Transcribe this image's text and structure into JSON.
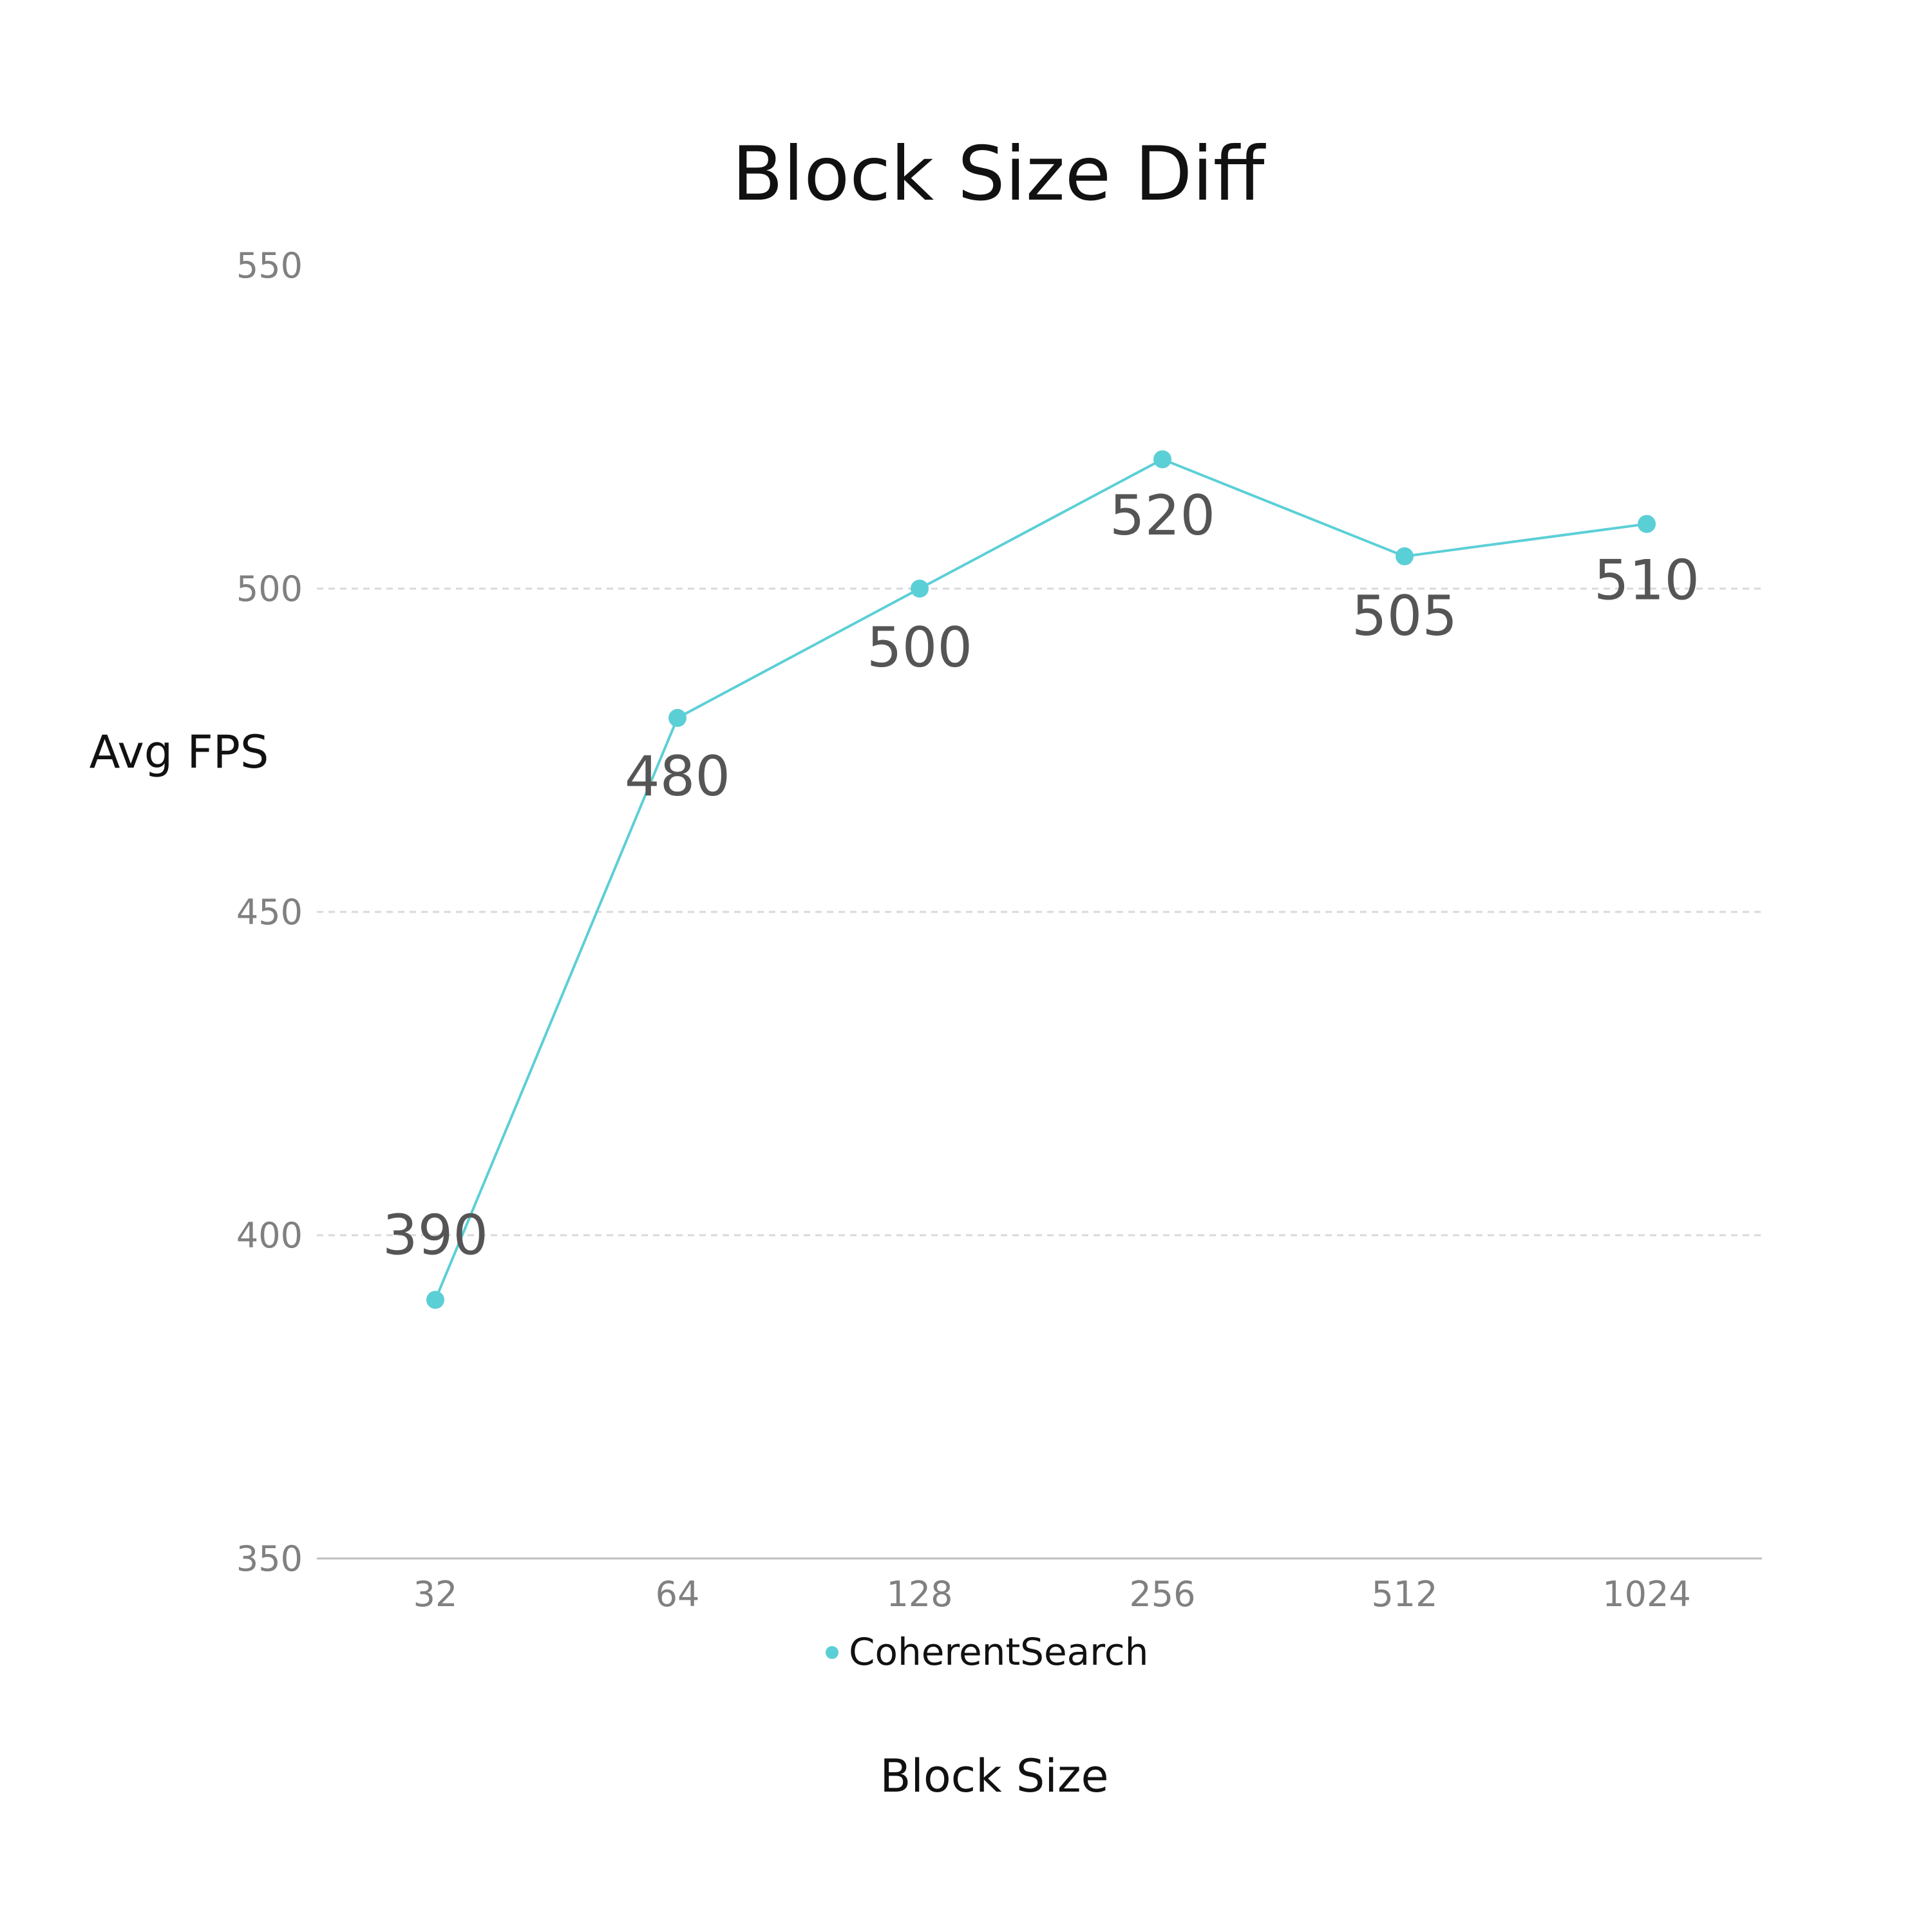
{
  "chart_data": {
    "type": "line",
    "title": "Block Size Diff",
    "xlabel": "Block Size",
    "ylabel": "Avg FPS",
    "categories": [
      "32",
      "64",
      "128",
      "256",
      "512",
      "1024"
    ],
    "series": [
      {
        "name": "CoherentSearch",
        "values": [
          390,
          480,
          500,
          520,
          505,
          510
        ],
        "color": "#5bcfd6"
      }
    ],
    "ylim": [
      350,
      550
    ],
    "yticks": [
      350,
      400,
      450,
      500,
      550
    ],
    "ytick_labels": [
      "350",
      "400",
      "450",
      "500",
      "550"
    ],
    "grid": true,
    "legend": "bottom-center"
  }
}
